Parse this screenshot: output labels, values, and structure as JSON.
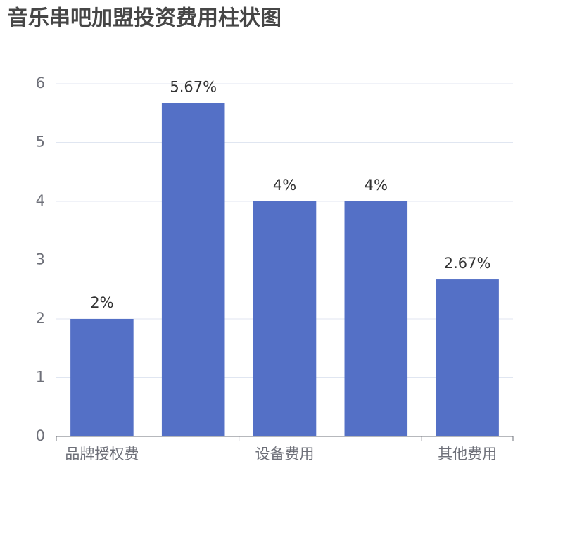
{
  "chart_data": {
    "type": "bar",
    "title": "音乐串吧加盟投资费用柱状图",
    "categories": [
      "品牌授权费",
      null,
      "设备费用",
      null,
      "其他费用"
    ],
    "values": [
      2,
      5.67,
      4,
      4,
      2.67
    ],
    "value_labels": [
      "2%",
      "5.67%",
      "4%",
      "4%",
      "2.67%"
    ],
    "color": "#5470c6",
    "ylim": [
      0,
      6
    ],
    "yticks": [
      0,
      1,
      2,
      3,
      4,
      5,
      6
    ],
    "grid": true
  }
}
